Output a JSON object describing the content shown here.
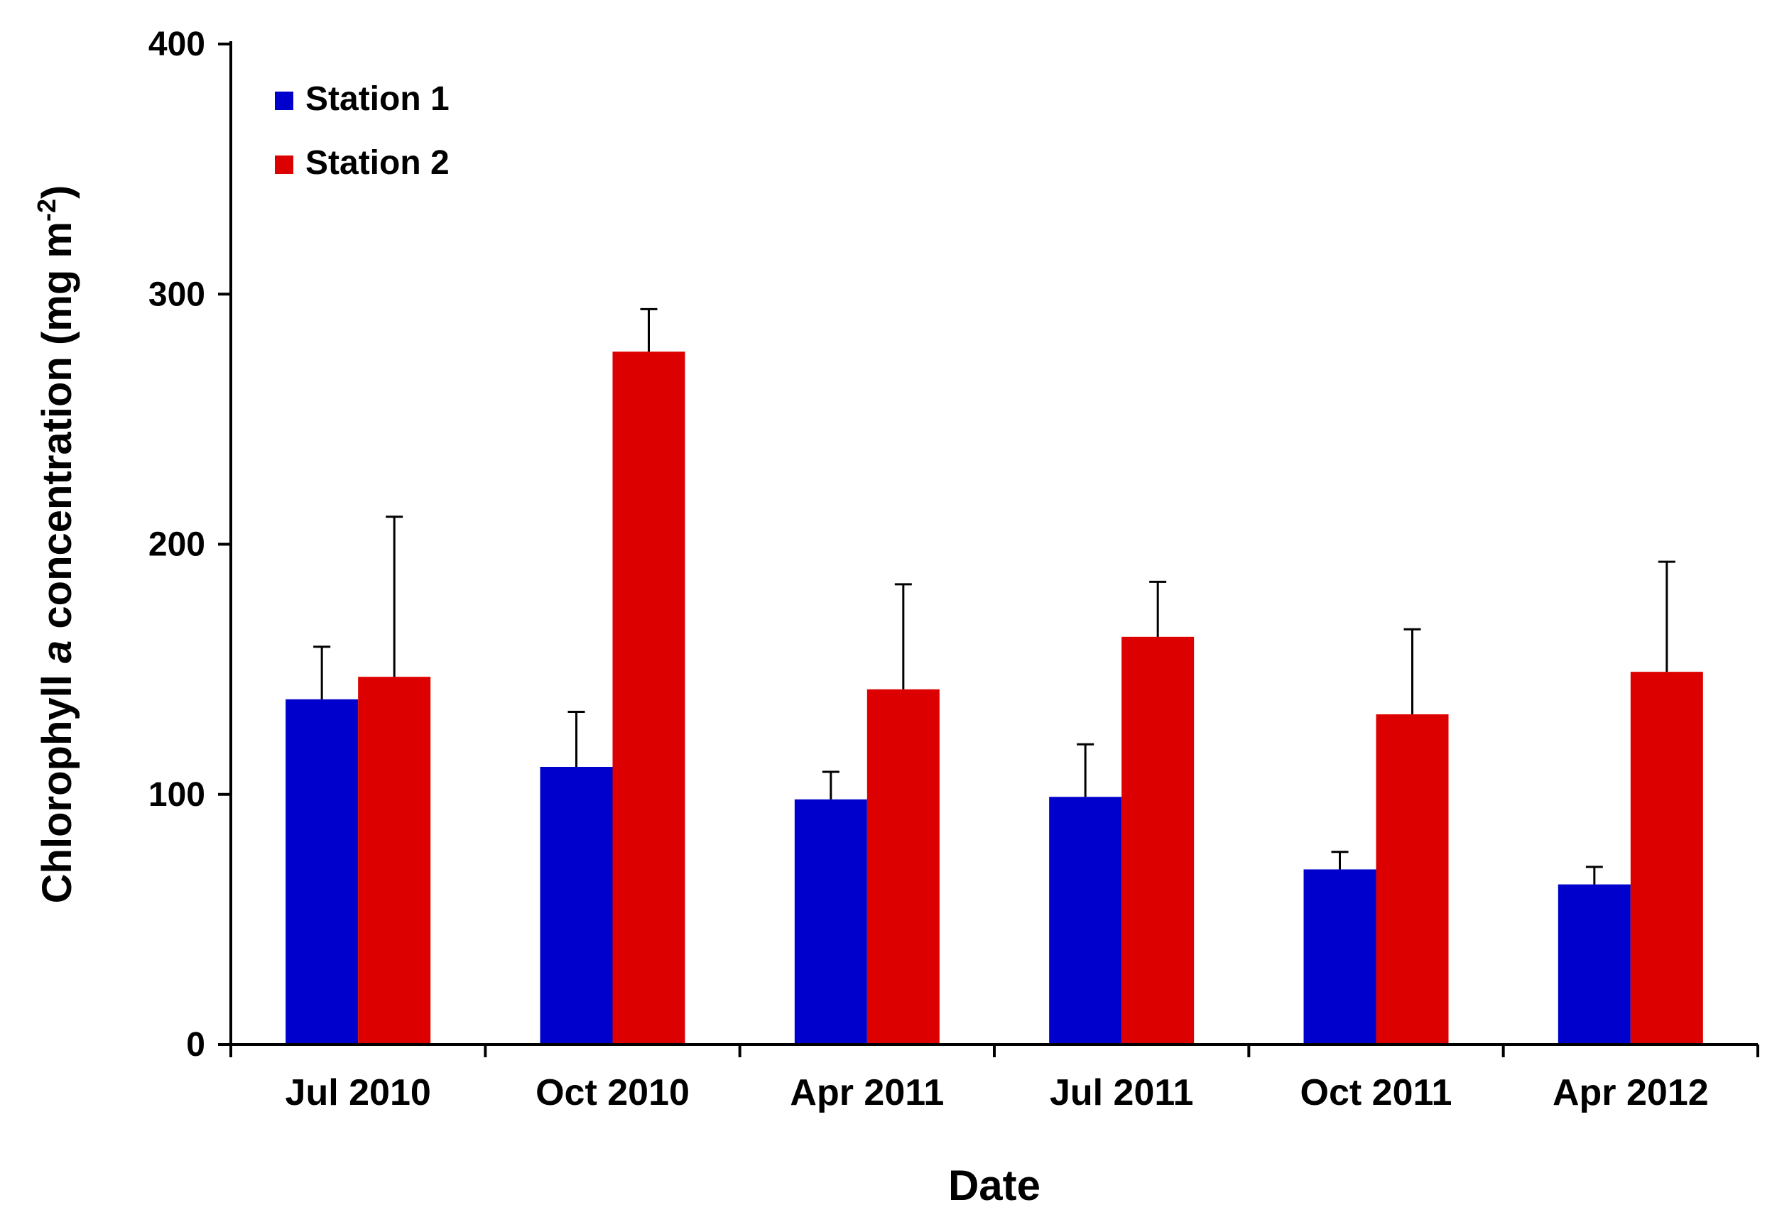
{
  "chart_data": {
    "type": "bar",
    "categories": [
      "Jul 2010",
      "Oct 2010",
      "Apr 2011",
      "Jul 2011",
      "Oct 2011",
      "Apr 2012"
    ],
    "series": [
      {
        "name": "Station 1",
        "color": "#0000CC",
        "values": [
          138,
          111,
          98,
          99,
          70,
          64
        ],
        "error": [
          21,
          22,
          11,
          21,
          7,
          7
        ]
      },
      {
        "name": "Station 2",
        "color": "#DD0000",
        "values": [
          147,
          277,
          142,
          163,
          132,
          149
        ],
        "error": [
          64,
          17,
          42,
          22,
          34,
          44
        ]
      }
    ],
    "title": "",
    "xlabel": "Date",
    "ylabel": {
      "prefix": "Chlorophyll ",
      "italic": "a",
      "middle": " concentration  (mg m",
      "superscript": "-2",
      "suffix": ")"
    },
    "ylim": [
      0,
      400
    ],
    "yticks": [
      0,
      100,
      200,
      300,
      400
    ],
    "legend_position": "top-left",
    "grid": false
  }
}
